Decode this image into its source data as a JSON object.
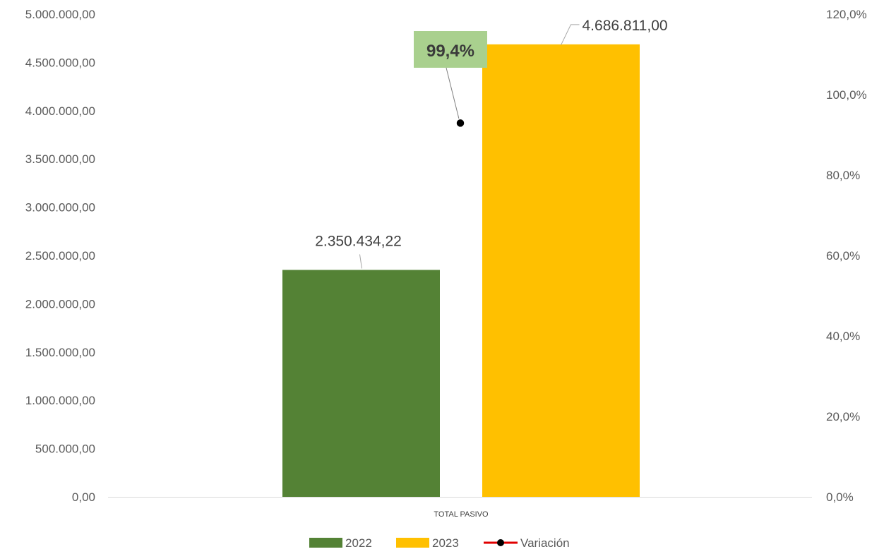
{
  "chart_data": {
    "type": "bar",
    "categories": [
      "TOTAL PASIVO"
    ],
    "series": [
      {
        "name": "2022",
        "values": [
          2350434.22
        ],
        "color": "#548235",
        "label": "2.350.434,22"
      },
      {
        "name": "2023",
        "values": [
          4686811.0
        ],
        "color": "#FFC000",
        "label": "4.686.811,00"
      }
    ],
    "line_series": {
      "name": "Variación",
      "values": [
        99.4
      ],
      "label": "99,4%",
      "axis": "secondary",
      "line_color": "#E00000",
      "marker_color": "#000000",
      "label_bg": "#A9D08E"
    },
    "ylim": [
      0,
      5000000
    ],
    "y_ticks": [
      0,
      500000,
      1000000,
      1500000,
      2000000,
      2500000,
      3000000,
      3500000,
      4000000,
      4500000,
      5000000
    ],
    "y_tick_labels": [
      "0,00",
      "500.000,00",
      "1.000.000,00",
      "1.500.000,00",
      "2.000.000,00",
      "2.500.000,00",
      "3.000.000,00",
      "3.500.000,00",
      "4.000.000,00",
      "4.500.000,00",
      "5.000.000,00"
    ],
    "y2lim": [
      0,
      120
    ],
    "y2_ticks": [
      0,
      20,
      40,
      60,
      80,
      100,
      120
    ],
    "y2_tick_labels": [
      "0,0%",
      "20,0%",
      "40,0%",
      "60,0%",
      "80,0%",
      "100,0%",
      "120,0%"
    ],
    "legend": {
      "position": "bottom",
      "entries": [
        "2022",
        "2023",
        "Variación"
      ]
    },
    "grid": false
  }
}
